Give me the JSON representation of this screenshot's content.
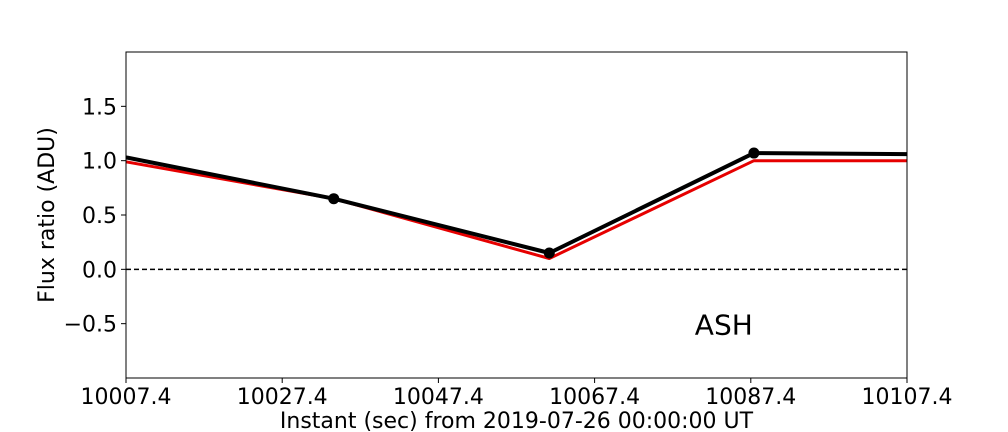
{
  "chart_data": {
    "type": "line",
    "title": "",
    "xlabel": "Instant (sec) from 2019-07-26 00:00:00 UT",
    "ylabel": "Flux ratio (ADU)",
    "xlim": [
      10007.4,
      10107.4
    ],
    "ylim": [
      -1.0,
      2.0
    ],
    "x_ticks": [
      10007.4,
      10027.4,
      10047.4,
      10067.4,
      10087.4,
      10107.4
    ],
    "x_tick_labels": [
      "10007.4",
      "10027.4",
      "10047.4",
      "10067.4",
      "10087.4",
      "10107.4"
    ],
    "y_ticks": [
      -0.5,
      0.0,
      0.5,
      1.0,
      1.5
    ],
    "y_tick_labels": [
      "−0.5",
      "0.0",
      "0.5",
      "1.0",
      "1.5"
    ],
    "grid": false,
    "legend": "none",
    "reference_line": {
      "y": 0.0,
      "style": "dashed",
      "color": "#000000"
    },
    "annotation": {
      "text": "ASH",
      "x": 10087.4,
      "y": -0.5
    },
    "series": [
      {
        "color": "#000000",
        "markers": true,
        "x": [
          10007.4,
          10034.0,
          10061.6,
          10087.8,
          10107.4
        ],
        "y": [
          1.03,
          0.65,
          0.15,
          1.07,
          1.06
        ],
        "marker_x": [
          10034.0,
          10061.6,
          10087.8
        ],
        "marker_y": [
          0.65,
          0.15,
          1.07
        ]
      },
      {
        "color": "#e60000",
        "markers": false,
        "x": [
          10007.4,
          10034.0,
          10061.6,
          10087.8,
          10107.4
        ],
        "y": [
          0.99,
          0.65,
          0.1,
          1.0,
          1.0
        ]
      }
    ]
  }
}
